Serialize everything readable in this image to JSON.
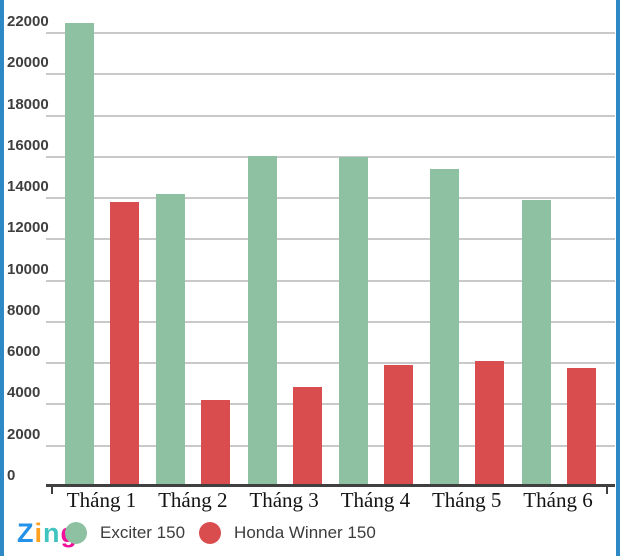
{
  "chart_data": {
    "type": "bar",
    "title": "",
    "categories": [
      "Tháng 1",
      "Tháng 2",
      "Tháng 3",
      "Tháng 4",
      "Tháng 5",
      "Tháng 6"
    ],
    "series": [
      {
        "name": "Exciter 150",
        "color": "#8dc1a2",
        "values": [
          22500,
          14200,
          16050,
          16000,
          15400,
          13900
        ]
      },
      {
        "name": "Honda Winner 150",
        "color": "#da4d4f",
        "values": [
          13800,
          4200,
          4850,
          5900,
          6100,
          5750
        ]
      }
    ],
    "ylim": [
      0,
      22000
    ],
    "ytick_step": 2000,
    "grid": true,
    "legend_position": "bottom-left",
    "xlabel": "",
    "ylabel": ""
  },
  "branding": {
    "logo_text": "Zing",
    "logo_letters": [
      {
        "char": "Z",
        "color": "#2492e8"
      },
      {
        "char": "i",
        "color": "#ffa01e"
      },
      {
        "char": "n",
        "color": "#3fc4c0"
      },
      {
        "char": "g",
        "color": "#f2109a"
      }
    ]
  },
  "colors": {
    "frame_border": "#2d88c6",
    "background": "#ffffff",
    "gridline": "#c9c9c9",
    "axis_line": "#404040",
    "y_label_text": "#3f3f3f",
    "x_label_text": "#141414",
    "legend_text": "#3c3c3c"
  }
}
